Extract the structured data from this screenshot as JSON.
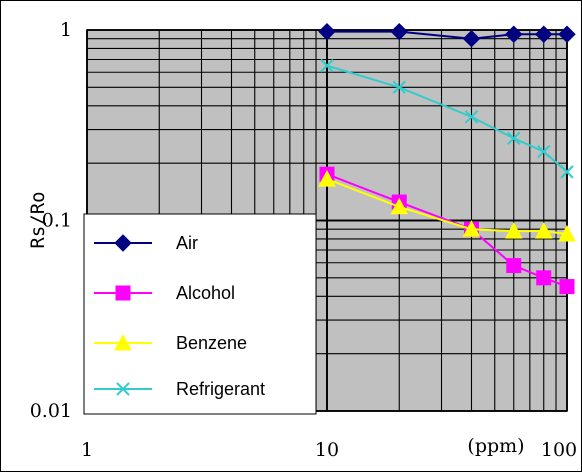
{
  "chart_data": {
    "type": "line",
    "xscale": "log",
    "yscale": "log",
    "xlim": [
      1,
      100
    ],
    "ylim": [
      0.01,
      1
    ],
    "xlabel": "(ppm)",
    "ylabel": "Rs/Ro",
    "x_ticks": [
      "1",
      "10",
      "100"
    ],
    "y_ticks": [
      "1",
      "0.1",
      "0.01"
    ],
    "grid": true,
    "legend_position": "bottom-left",
    "plot_background": "#c0c0c0",
    "series": [
      {
        "name": "Air",
        "color": "#000080",
        "marker": "diamond",
        "x": [
          10,
          20,
          40,
          60,
          80,
          100
        ],
        "y": [
          0.98,
          0.98,
          0.9,
          0.95,
          0.95,
          0.95
        ]
      },
      {
        "name": "Alcohol",
        "color": "#ff00ff",
        "marker": "square",
        "x": [
          10,
          20,
          40,
          60,
          80,
          100
        ],
        "y": [
          0.175,
          0.125,
          0.09,
          0.058,
          0.05,
          0.045
        ]
      },
      {
        "name": "Benzene",
        "color": "#ffff00",
        "marker": "triangle",
        "x": [
          10,
          20,
          40,
          60,
          80,
          100
        ],
        "y": [
          0.165,
          0.118,
          0.09,
          0.088,
          0.088,
          0.085
        ]
      },
      {
        "name": "Refrigerant",
        "color": "#33cccc",
        "marker": "x",
        "x": [
          10,
          20,
          40,
          60,
          80,
          100
        ],
        "y": [
          0.65,
          0.5,
          0.35,
          0.27,
          0.23,
          0.18
        ]
      }
    ]
  }
}
